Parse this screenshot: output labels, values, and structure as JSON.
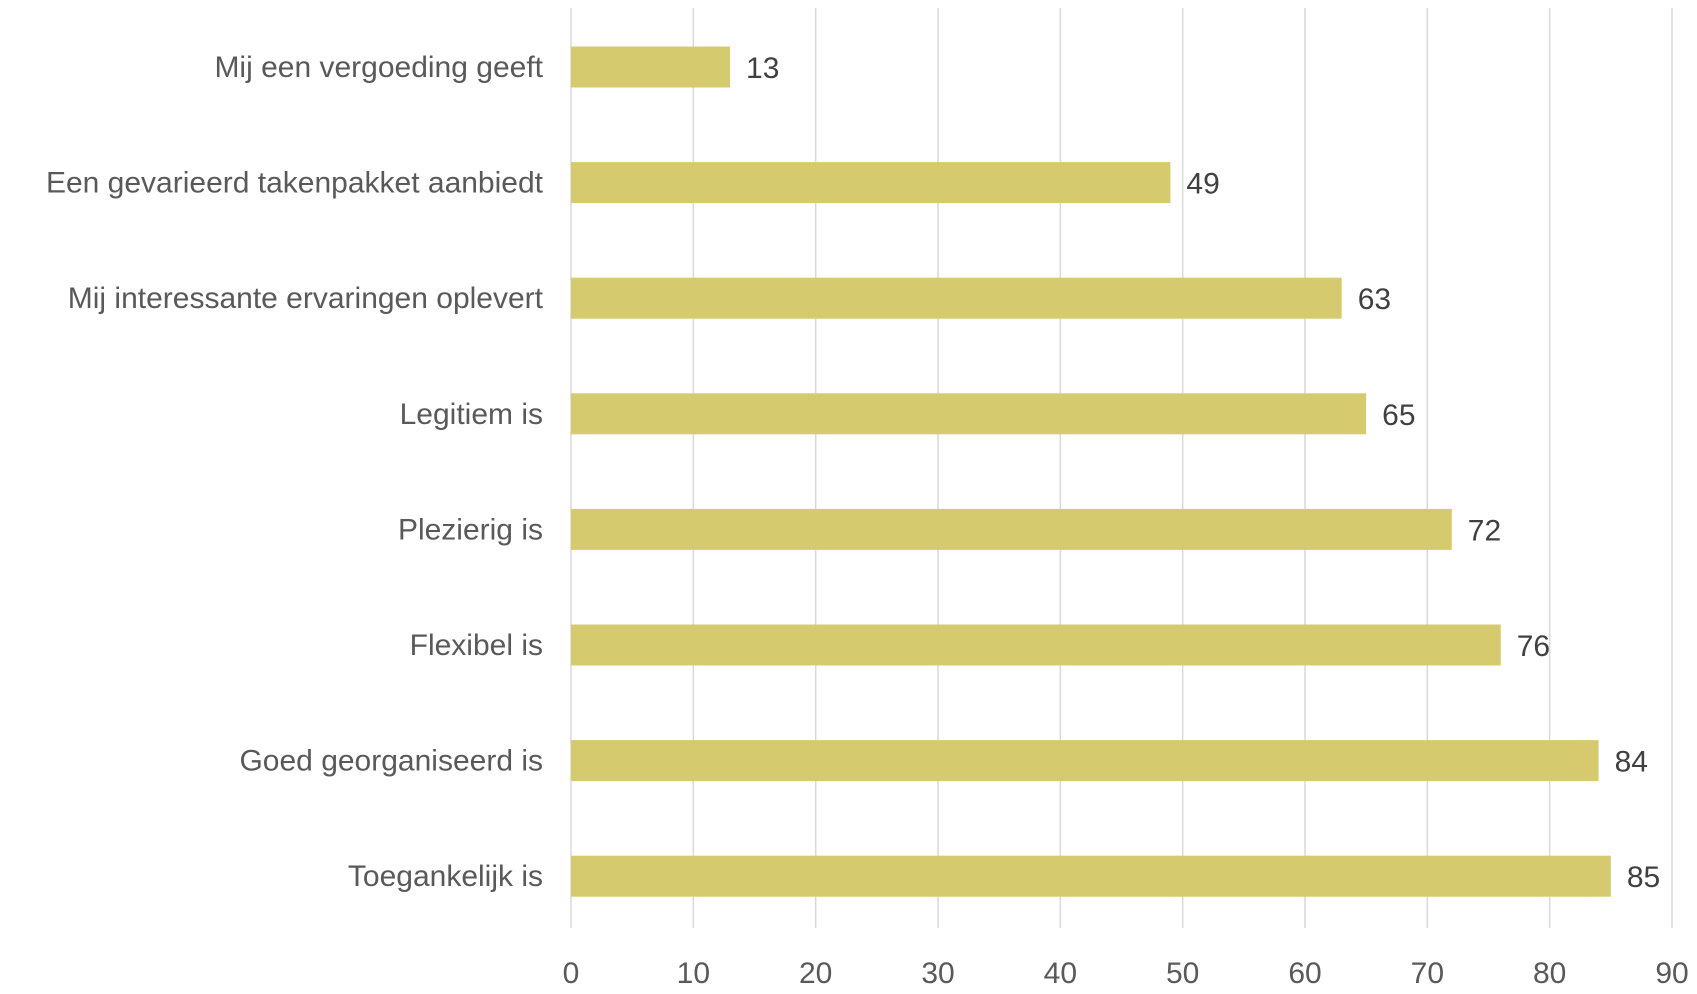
{
  "chart_data": {
    "type": "bar",
    "orientation": "horizontal",
    "categories": [
      "Mij een vergoeding geeft",
      "Een gevarieerd takenpakket aanbiedt",
      "Mij interessante ervaringen oplevert",
      "Legitiem is",
      "Plezierig is",
      "Flexibel is",
      "Goed georganiseerd is",
      "Toegankelijk is"
    ],
    "values": [
      13,
      49,
      63,
      65,
      72,
      76,
      84,
      85
    ],
    "value_labels": [
      "13",
      "49",
      "63",
      "65",
      "72",
      "76",
      "84",
      "85"
    ],
    "xlim": [
      0,
      90
    ],
    "x_ticks": [
      "0",
      "10",
      "20",
      "30",
      "40",
      "50",
      "60",
      "70",
      "80",
      "90"
    ],
    "grid": "vertical",
    "legend": "none",
    "title": "",
    "xlabel": "",
    "ylabel": ""
  },
  "colors": {
    "bar": "#d5cb6e",
    "grid": "#d9d9d9",
    "category_text": "#595959",
    "value_text": "#404040",
    "tick_text": "#595959"
  }
}
